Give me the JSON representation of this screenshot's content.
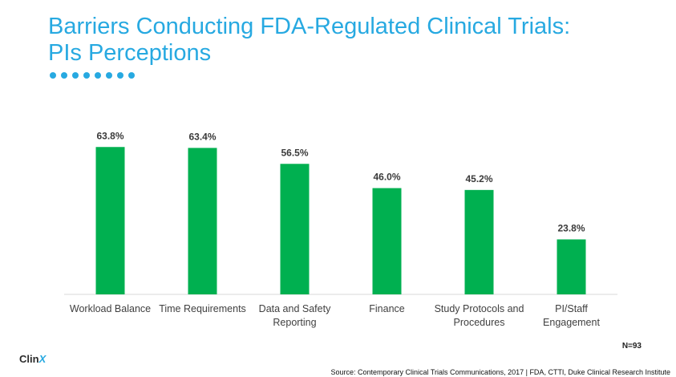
{
  "title_line1": "Barriers Conducting FDA-Regulated Clinical Trials:",
  "title_line2": "PIs Perceptions",
  "n_label": "N=93",
  "logo": {
    "text": "Clin",
    "accent": "X"
  },
  "source": "Source: Contemporary Clinical Trials Communications, 2017 | FDA, CTTI, Duke Clinical Research Institute",
  "colors": {
    "accent": "#27a9e1",
    "bar": "#00b050",
    "axis": "#d9d9d9"
  },
  "chart_data": {
    "type": "bar",
    "categories": [
      [
        "Workload Balance"
      ],
      [
        "Time Requirements"
      ],
      [
        "Data and Safety",
        "Reporting"
      ],
      [
        "Finance"
      ],
      [
        "Study Protocols and",
        "Procedures"
      ],
      [
        "PI/Staff",
        "Engagement"
      ]
    ],
    "values": [
      63.8,
      63.4,
      56.5,
      46.0,
      45.2,
      23.8
    ],
    "value_labels": [
      "63.8%",
      "63.4%",
      "56.5%",
      "46.0%",
      "45.2%",
      "23.8%"
    ],
    "ylim": [
      0,
      70
    ],
    "grid": false,
    "legend": "none"
  }
}
